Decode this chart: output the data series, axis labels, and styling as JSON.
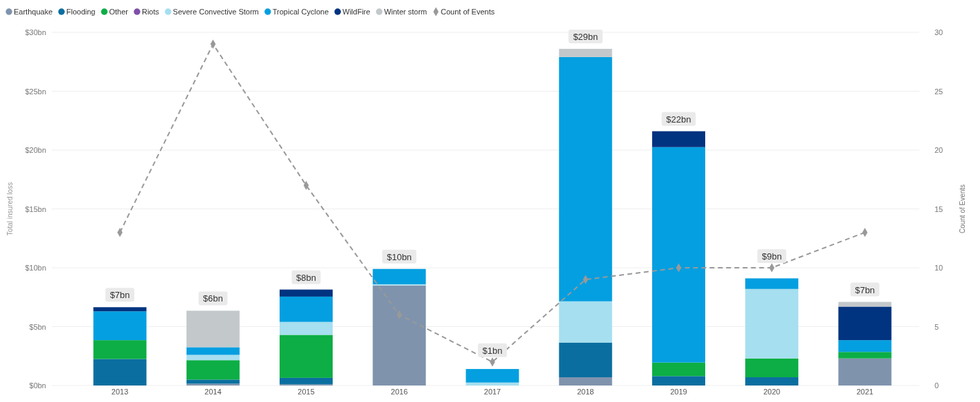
{
  "chart_data": {
    "type": "bar",
    "stacked": true,
    "ylabel": "Total insured loss",
    "y2label": "Count of Events",
    "categories": [
      "2013",
      "2014",
      "2015",
      "2016",
      "2017",
      "2018",
      "2019",
      "2020",
      "2021"
    ],
    "series": [
      {
        "name": "Earthquake",
        "color": "#7f93ad",
        "values": [
          null,
          0.15,
          0.1,
          8.5,
          null,
          0.7,
          null,
          null,
          2.3
        ]
      },
      {
        "name": "Flooding",
        "color": "#0a6fa0",
        "values": [
          2.25,
          0.35,
          0.55,
          null,
          null,
          2.95,
          0.8,
          0.7,
          null
        ]
      },
      {
        "name": "Other",
        "color": "#0cae45",
        "values": [
          1.6,
          1.65,
          3.65,
          null,
          null,
          null,
          1.15,
          1.6,
          0.55
        ]
      },
      {
        "name": "Riots",
        "color": "#7e4fa8",
        "values": [
          null,
          null,
          null,
          null,
          null,
          null,
          null,
          null,
          null
        ]
      },
      {
        "name": "Severe Convective Storm",
        "color": "#a6dff0",
        "values": [
          null,
          0.45,
          1.1,
          0.1,
          0.25,
          3.5,
          null,
          5.9,
          null
        ]
      },
      {
        "name": "Tropical Cyclone",
        "color": "#049fe0",
        "values": [
          2.45,
          0.65,
          2.15,
          1.3,
          1.15,
          20.75,
          18.3,
          0.9,
          1.0
        ]
      },
      {
        "name": "WildFire",
        "color": "#003380",
        "values": [
          0.35,
          null,
          0.6,
          null,
          null,
          null,
          1.35,
          null,
          2.85
        ]
      },
      {
        "name": "Winter storm",
        "color": "#c3c8cb",
        "values": [
          null,
          3.1,
          null,
          null,
          null,
          0.7,
          null,
          null,
          0.4
        ]
      },
      {
        "name": "Count of Events",
        "type": "line",
        "axis": "y2",
        "color": "#999999",
        "marker": "diamond",
        "line_style": "dashed",
        "values": [
          13,
          29,
          17,
          6,
          2,
          9,
          10,
          10,
          13
        ]
      }
    ],
    "totals": [
      "$7bn",
      "$6bn",
      "$8bn",
      "$10bn",
      "$1bn",
      "$29bn",
      "$22bn",
      "$9bn",
      "$7bn"
    ],
    "ylim": [
      0,
      30
    ],
    "yticks": [
      {
        "value": 0,
        "label": "$0bn"
      },
      {
        "value": 5,
        "label": "$5bn"
      },
      {
        "value": 10,
        "label": "$10bn"
      },
      {
        "value": 15,
        "label": "$15bn"
      },
      {
        "value": 20,
        "label": "$20bn"
      },
      {
        "value": 25,
        "label": "$25bn"
      },
      {
        "value": 30,
        "label": "$30bn"
      }
    ],
    "y2lim": [
      0,
      30
    ],
    "y2ticks": [
      0,
      5,
      10,
      15,
      20,
      25,
      30
    ],
    "grid": "y",
    "legend": "top left"
  }
}
